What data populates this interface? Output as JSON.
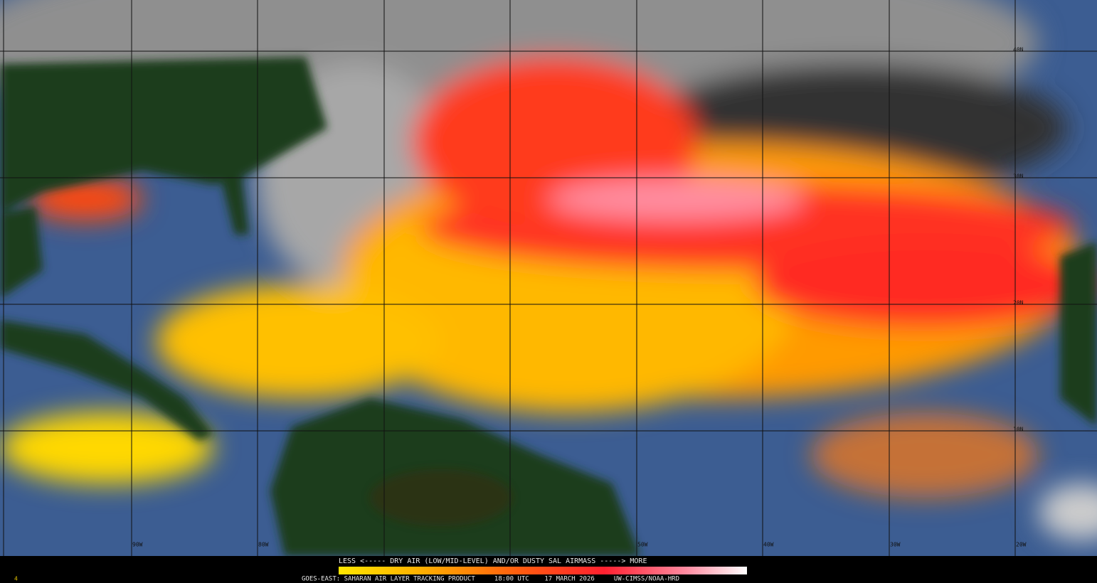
{
  "header": {
    "legend": "LESS <----- DRY AIR (LOW/MID-LEVEL) AND/OR DUSTY SAL AIRMASS -----> MORE"
  },
  "footer": {
    "corner_mark": "4",
    "caption": "GOES-EAST: SAHARAN AIR LAYER TRACKING PRODUCT     18:00 UTC    17 MARCH 2026     UW-CIMSS/NOAA-HRD"
  },
  "map": {
    "latitude_labels": [
      "40N",
      "30N",
      "20N",
      "10N"
    ],
    "longitude_labels": [
      "90W",
      "80W",
      "50W",
      "40W",
      "30W",
      "20W"
    ]
  }
}
